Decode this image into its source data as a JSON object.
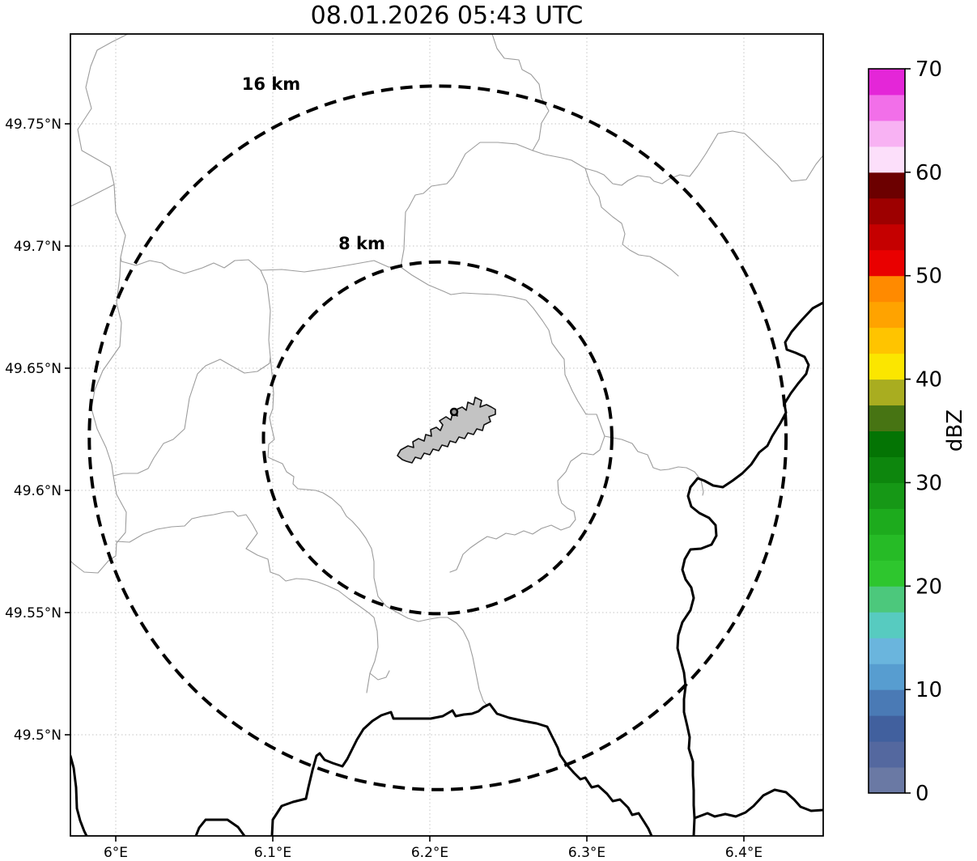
{
  "title": "08.01.2026 05:43 UTC",
  "map": {
    "x_axis": {
      "ticks": [
        {
          "label": "6°E",
          "lon": 6.0
        },
        {
          "label": "6.1°E",
          "lon": 6.1
        },
        {
          "label": "6.2°E",
          "lon": 6.2
        },
        {
          "label": "6.3°E",
          "lon": 6.3
        },
        {
          "label": "6.4°E",
          "lon": 6.4
        }
      ]
    },
    "y_axis": {
      "ticks": [
        {
          "label": "49.75°N",
          "lat": 49.75
        },
        {
          "label": "49.7°N",
          "lat": 49.7
        },
        {
          "label": "49.65°N",
          "lat": 49.65
        },
        {
          "label": "49.6°N",
          "lat": 49.6
        },
        {
          "label": "49.55°N",
          "lat": 49.55
        },
        {
          "label": "49.5°N",
          "lat": 49.5
        }
      ]
    },
    "range_rings": [
      {
        "label": "16 km",
        "radius_km": 16
      },
      {
        "label": "8 km",
        "radius_km": 8
      }
    ],
    "radar_site": {
      "lon": 6.205,
      "lat": 49.6215,
      "marker": "small-circle",
      "site_shape": "airport-polygon-gray"
    }
  },
  "colorbar": {
    "label": "dBZ",
    "min": 0,
    "max": 70,
    "ticks": [
      0,
      10,
      20,
      30,
      40,
      50,
      60,
      70
    ],
    "segments": [
      {
        "from": 0,
        "to": 2.5,
        "color": "#6a79a4"
      },
      {
        "from": 2.5,
        "to": 5,
        "color": "#54689f"
      },
      {
        "from": 5,
        "to": 7.5,
        "color": "#41609e"
      },
      {
        "from": 7.5,
        "to": 10,
        "color": "#4a7ab5"
      },
      {
        "from": 10,
        "to": 12.5,
        "color": "#579dd0"
      },
      {
        "from": 12.5,
        "to": 15,
        "color": "#6ab5dd"
      },
      {
        "from": 15,
        "to": 17.5,
        "color": "#57cbc0"
      },
      {
        "from": 17.5,
        "to": 20,
        "color": "#4cc87c"
      },
      {
        "from": 20,
        "to": 22.5,
        "color": "#2ec62e"
      },
      {
        "from": 22.5,
        "to": 25,
        "color": "#26bb26"
      },
      {
        "from": 25,
        "to": 27.5,
        "color": "#1dab1d"
      },
      {
        "from": 27.5,
        "to": 30,
        "color": "#169816"
      },
      {
        "from": 30,
        "to": 32.5,
        "color": "#0d860d"
      },
      {
        "from": 32.5,
        "to": 35,
        "color": "#047404"
      },
      {
        "from": 35,
        "to": 37.5,
        "color": "#477413"
      },
      {
        "from": 37.5,
        "to": 40,
        "color": "#a9ad20"
      },
      {
        "from": 40,
        "to": 42.5,
        "color": "#fbe600"
      },
      {
        "from": 42.5,
        "to": 45,
        "color": "#ffc400"
      },
      {
        "from": 45,
        "to": 47.5,
        "color": "#ffa300"
      },
      {
        "from": 47.5,
        "to": 50,
        "color": "#ff8a00"
      },
      {
        "from": 50,
        "to": 52.5,
        "color": "#e90000"
      },
      {
        "from": 52.5,
        "to": 55,
        "color": "#c50000"
      },
      {
        "from": 55,
        "to": 57.5,
        "color": "#9d0000"
      },
      {
        "from": 57.5,
        "to": 60,
        "color": "#6c0000"
      },
      {
        "from": 60,
        "to": 62.5,
        "color": "#fcdffa"
      },
      {
        "from": 62.5,
        "to": 65,
        "color": "#f8b2f3"
      },
      {
        "from": 65,
        "to": 67.5,
        "color": "#f26fe9"
      },
      {
        "from": 67.5,
        "to": 70,
        "color": "#e426d8"
      }
    ]
  },
  "chart_data": {
    "type": "map",
    "title": "08.01.2026 05:43 UTC",
    "description": "Weather radar reflectivity (dBZ) display around a radar site at an airport; map shows lat/lon grid, administrative borders (thin gray), country borders/rivers (thick black), dashed 8 km and 16 km range rings; no precipitation echoes visible",
    "lon_range": [
      5.971,
      6.448
    ],
    "lat_range": [
      49.459,
      49.787
    ],
    "x_tick_values": [
      6.0,
      6.1,
      6.2,
      6.3,
      6.4
    ],
    "y_tick_values": [
      49.5,
      49.55,
      49.6,
      49.65,
      49.7,
      49.75
    ],
    "range_rings_km": [
      8,
      16
    ],
    "radar_site_lonlat": [
      6.205,
      49.6215
    ],
    "colorbar_label": "dBZ",
    "colorbar_range": [
      0,
      70
    ],
    "colorbar_tick_values": [
      0,
      10,
      20,
      30,
      40,
      50,
      60,
      70
    ],
    "colorbar_step": 2.5,
    "grid": true,
    "legend_position": "right-colorbar"
  }
}
